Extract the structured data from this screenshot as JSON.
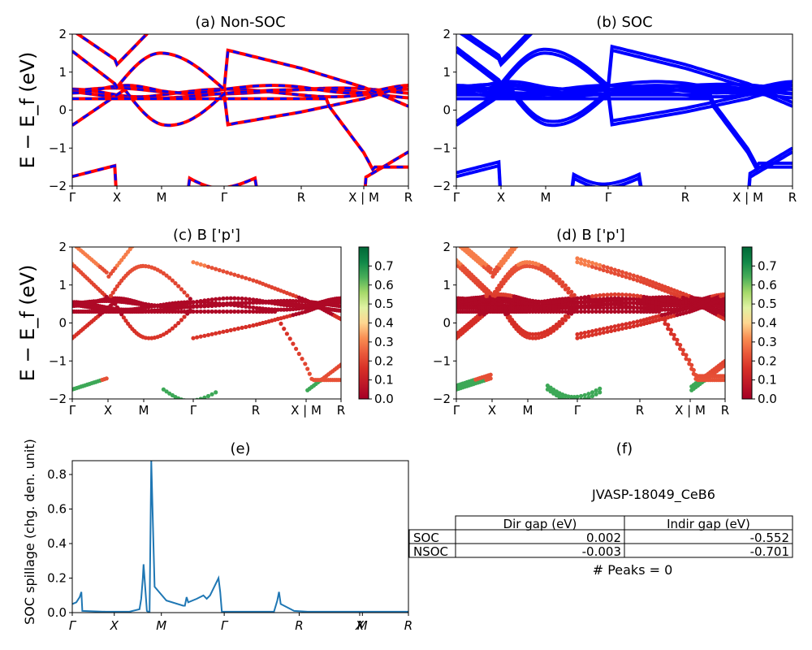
{
  "chart_data": [
    {
      "id": "a",
      "type": "line",
      "title": "(a) Non-SOC",
      "ylabel": "E − E_f (eV)",
      "ylim": [
        -2,
        2
      ],
      "yticks": [
        "2",
        "1",
        "0",
        "−1",
        "−2"
      ],
      "xticks": [
        "Γ",
        "X",
        "M",
        "Γ",
        "R",
        "X | M",
        "R"
      ],
      "series": [
        {
          "style": "red solid + blue dashed overlay",
          "color": "#ff0000",
          "color2": "#0000ff"
        }
      ]
    },
    {
      "id": "b",
      "type": "line",
      "title": "(b) SOC",
      "ylim": [
        -2,
        2
      ],
      "yticks": [
        "2",
        "1",
        "0",
        "−1",
        "−2"
      ],
      "xticks": [
        "Γ",
        "X",
        "M",
        "Γ",
        "R",
        "X | M",
        "R"
      ],
      "series": [
        {
          "color": "#0000ff"
        }
      ]
    },
    {
      "id": "c",
      "type": "scatter",
      "title": "(c)  B ['p']",
      "ylabel": "E − E_f (eV)",
      "ylim": [
        -2,
        2
      ],
      "yticks": [
        "2",
        "1",
        "0",
        "−1",
        "−2"
      ],
      "xticks": [
        "Γ",
        "X",
        "M",
        "Γ",
        "R",
        "X | M",
        "R"
      ],
      "colorbar": {
        "colormap": "RdYlGn",
        "range": [
          0.0,
          0.8
        ],
        "ticks": [
          "0.7",
          "0.6",
          "0.5",
          "0.4",
          "0.3",
          "0.2",
          "0.1",
          "0.0"
        ]
      }
    },
    {
      "id": "d",
      "type": "scatter",
      "title": "(d) B ['p']",
      "ylim": [
        -2,
        2
      ],
      "yticks": [
        "2",
        "1",
        "0",
        "−1",
        "−2"
      ],
      "xticks": [
        "Γ",
        "X",
        "M",
        "Γ",
        "R",
        "X | M",
        "R"
      ],
      "colorbar": {
        "colormap": "RdYlGn",
        "range": [
          0.0,
          0.8
        ],
        "ticks": [
          "0.7",
          "0.6",
          "0.5",
          "0.4",
          "0.3",
          "0.2",
          "0.1",
          "0.0"
        ]
      }
    },
    {
      "id": "e",
      "type": "line",
      "title": "(e)",
      "ylabel": "SOC spillage (chg. den. unit)",
      "ylim": [
        0,
        0.88
      ],
      "yticks": [
        "0.8",
        "0.6",
        "0.4",
        "0.2",
        "0.0"
      ],
      "xticks": [
        "Γ",
        "X",
        "M",
        "Γ",
        "R",
        "X",
        "M",
        "R"
      ],
      "x": [
        0.0,
        0.012,
        0.022,
        0.027,
        0.03,
        0.1,
        0.17,
        0.2,
        0.205,
        0.21,
        0.212,
        0.222,
        0.226,
        0.23,
        0.235,
        0.24,
        0.245,
        0.28,
        0.33,
        0.335,
        0.34,
        0.345,
        0.37,
        0.39,
        0.4,
        0.41,
        0.435,
        0.44,
        0.445,
        0.6,
        0.61,
        0.615,
        0.62,
        0.66,
        0.7,
        0.8,
        1.0
      ],
      "values": [
        0.05,
        0.06,
        0.09,
        0.12,
        0.01,
        0.005,
        0.005,
        0.02,
        0.08,
        0.2,
        0.28,
        0.01,
        0.005,
        0.005,
        0.88,
        0.5,
        0.15,
        0.07,
        0.04,
        0.04,
        0.09,
        0.06,
        0.08,
        0.1,
        0.08,
        0.1,
        0.2,
        0.12,
        0.005,
        0.005,
        0.07,
        0.12,
        0.05,
        0.01,
        0.005,
        0.005,
        0.005
      ],
      "color": "#1f77b4"
    },
    {
      "id": "f",
      "type": "table",
      "title": "(f)",
      "subtitle": "JVASP-18049_CeB6",
      "columns": [
        "Dir gap (eV)",
        "Indir gap (eV)"
      ],
      "rows": [
        {
          "label": "SOC",
          "values": [
            "0.002",
            "-0.552"
          ]
        },
        {
          "label": "NSOC",
          "values": [
            "-0.003",
            "-0.701"
          ]
        }
      ],
      "footer": "# Peaks = 0"
    }
  ]
}
